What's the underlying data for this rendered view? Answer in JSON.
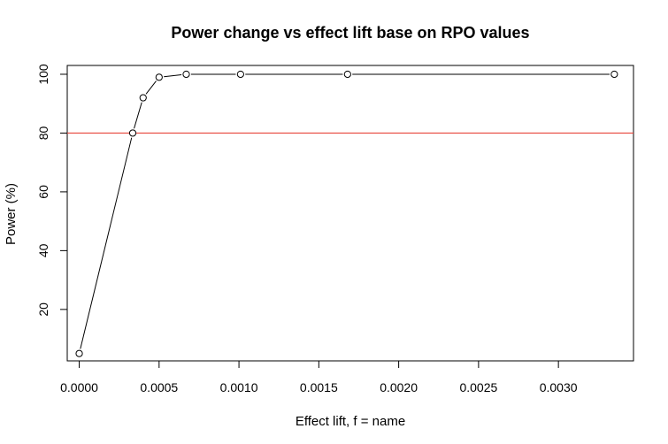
{
  "chart_data": {
    "type": "line",
    "title": "Power change vs effect lift base on RPO values",
    "xlabel": "Effect lift, f = name",
    "ylabel": "Power (%)",
    "xlim": [
      -7.5e-05,
      0.00347
    ],
    "ylim": [
      2.5,
      103
    ],
    "x_ticks": [
      0.0,
      0.0005,
      0.001,
      0.0015,
      0.002,
      0.0025,
      0.003
    ],
    "x_tick_labels": [
      "0.0000",
      "0.0005",
      "0.0010",
      "0.0015",
      "0.0020",
      "0.0025",
      "0.0030"
    ],
    "y_ticks": [
      20,
      40,
      60,
      80,
      100
    ],
    "y_tick_labels": [
      "20",
      "40",
      "60",
      "80",
      "100"
    ],
    "grid": false,
    "series": [
      {
        "x": [
          0.0,
          0.000335,
          0.0004,
          0.0005,
          0.00067,
          0.00101,
          0.00168,
          0.00335
        ],
        "y": [
          5,
          80,
          92,
          99,
          100,
          100,
          100,
          100
        ],
        "color": "#000000",
        "marker": "open-circle"
      }
    ],
    "reference_lines": [
      {
        "y": 80,
        "color": "#e8453c"
      }
    ]
  }
}
